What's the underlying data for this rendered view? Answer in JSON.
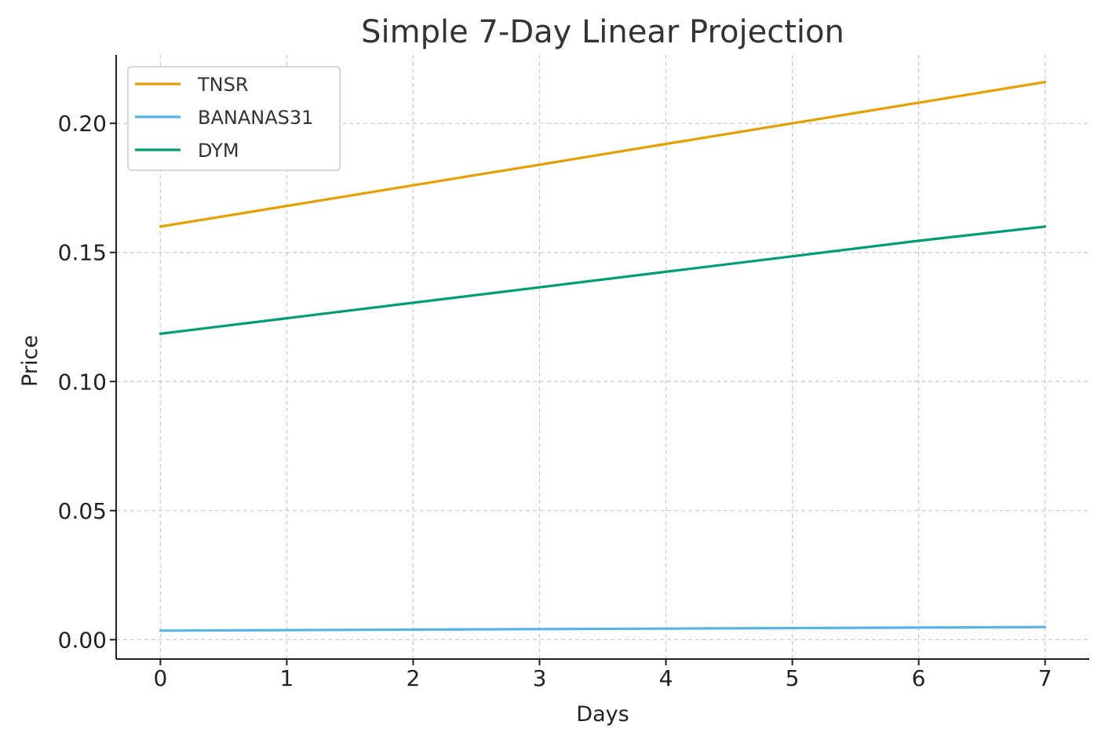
{
  "chart_data": {
    "type": "line",
    "title": "Simple 7-Day Linear Projection",
    "xlabel": "Days",
    "ylabel": "Price",
    "x": [
      0,
      1,
      2,
      3,
      4,
      5,
      6,
      7
    ],
    "xticks": [
      "0",
      "1",
      "2",
      "3",
      "4",
      "5",
      "6",
      "7"
    ],
    "yticks": [
      "0.00",
      "0.05",
      "0.10",
      "0.15",
      "0.20"
    ],
    "ytick_values": [
      0.0,
      0.05,
      0.1,
      0.15,
      0.2
    ],
    "xlim": [
      -0.35,
      7.35
    ],
    "ylim": [
      -0.0075,
      0.2265
    ],
    "grid": true,
    "legend_position": "top-left",
    "series": [
      {
        "name": "TNSR",
        "color": "#E69F00",
        "values": [
          0.16,
          0.168,
          0.176,
          0.184,
          0.192,
          0.2,
          0.208,
          0.216
        ]
      },
      {
        "name": "BANANAS31",
        "color": "#56B4E9",
        "values": [
          0.0035,
          0.0037,
          0.0039,
          0.0041,
          0.0043,
          0.0045,
          0.0047,
          0.0049
        ]
      },
      {
        "name": "DYM",
        "color": "#009E73",
        "values": [
          0.1185,
          0.1245,
          0.1305,
          0.1365,
          0.1425,
          0.1485,
          0.1545,
          0.16
        ]
      }
    ]
  }
}
